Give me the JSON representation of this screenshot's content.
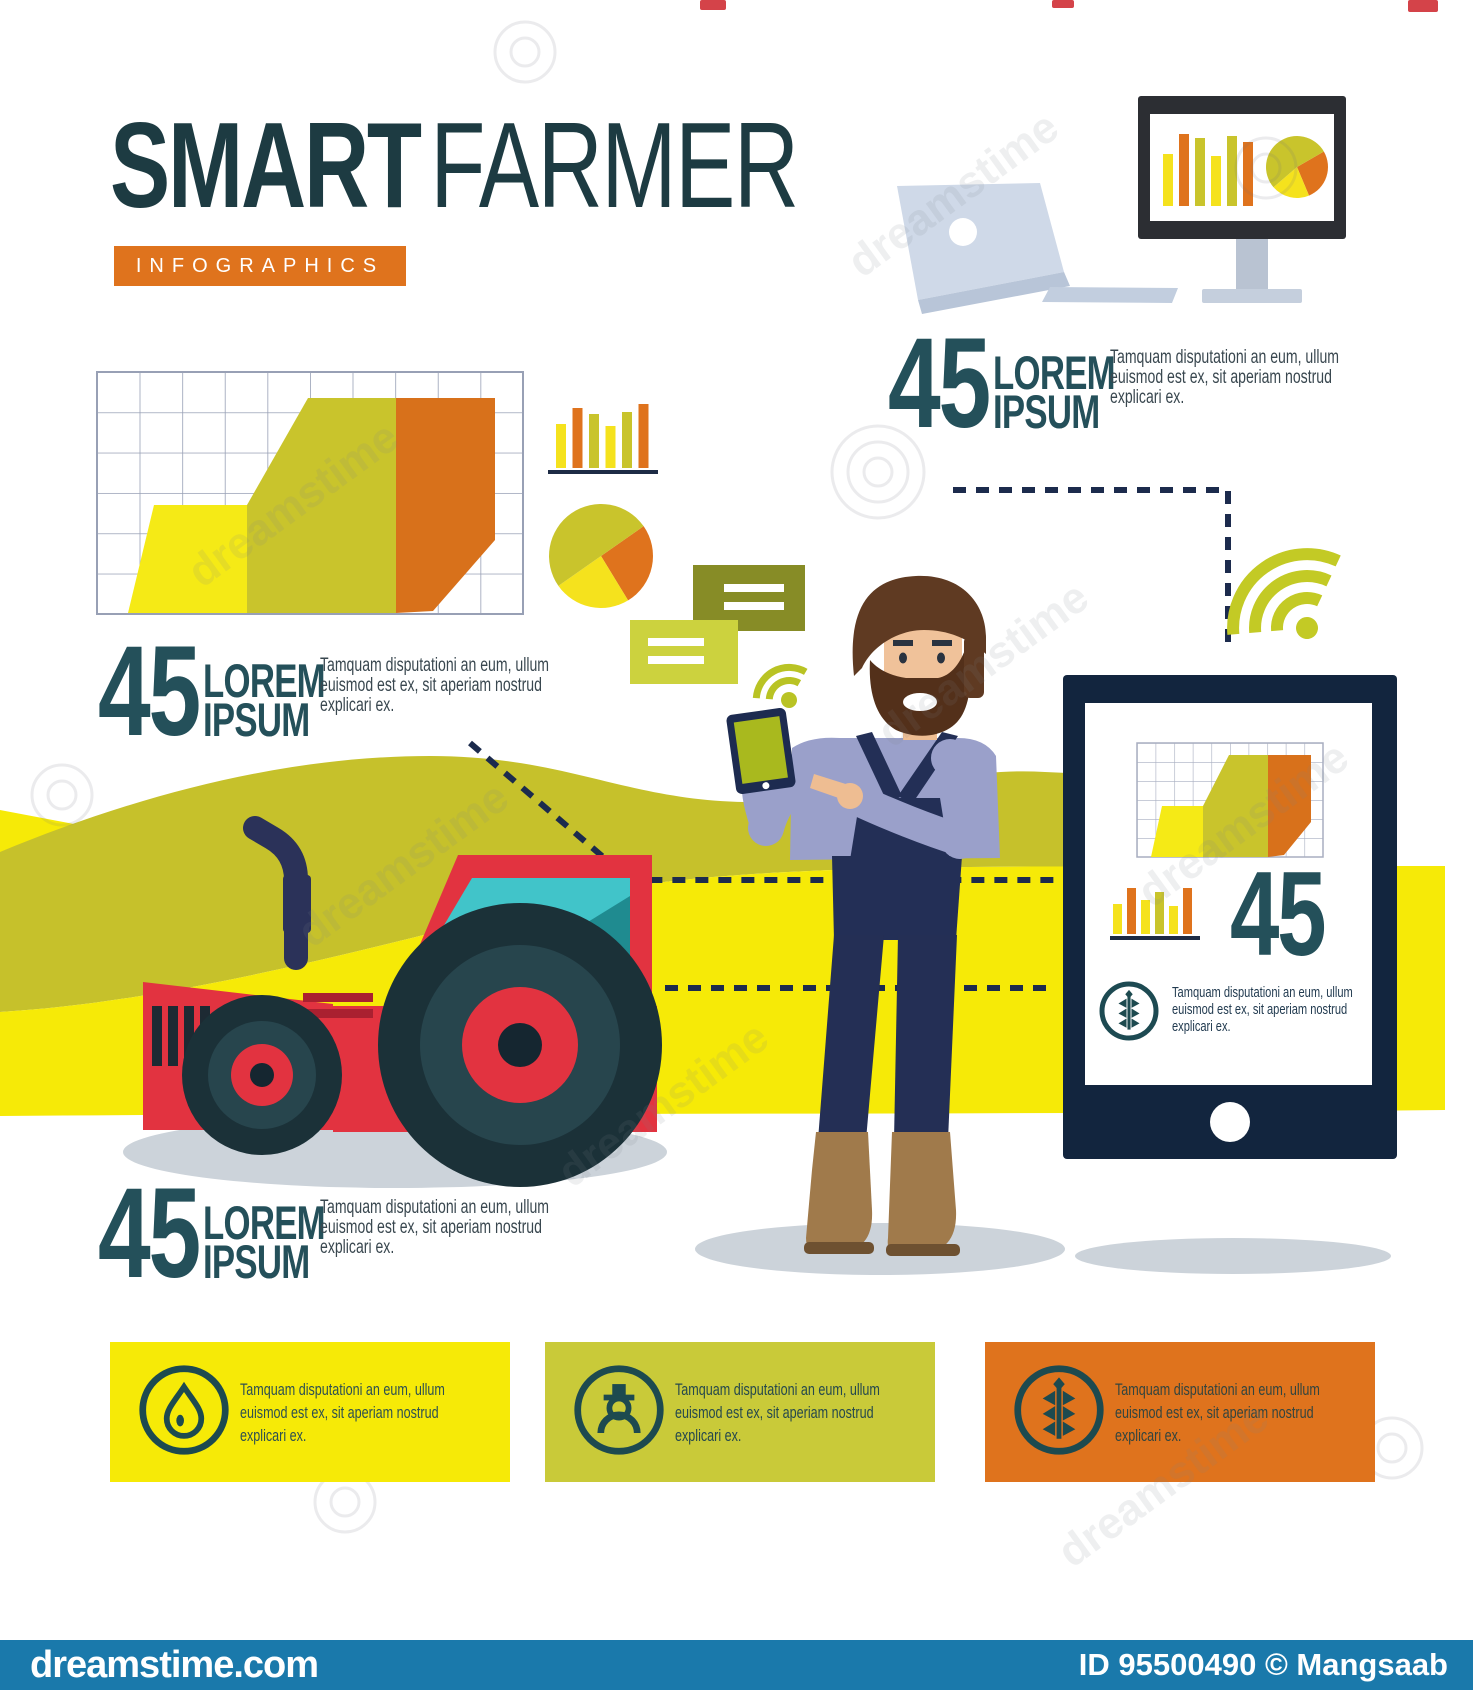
{
  "title": {
    "word_bold": "SMART",
    "word_light": "FARMER",
    "banner": "INFOGRAPHICS"
  },
  "lorem": {
    "l1": "Tamquam disputationi an eum, ullum",
    "l2": "euismod est ex, sit aperiam nostrud",
    "l3": "explicari ex."
  },
  "stat": {
    "value": "45",
    "label1": "LOREM",
    "label2": "IPSUM"
  },
  "tablet": {
    "value": "45",
    "icon": "wheat-icon"
  },
  "boxes": [
    {
      "icon": "water-drop-icon",
      "bg": "#f6ea07"
    },
    {
      "icon": "farmer-icon",
      "bg": "#c9ca39"
    },
    {
      "icon": "wheat-icon",
      "bg": "#df731d"
    }
  ],
  "footer": {
    "brand": "dreamstime.com",
    "credit": "ID 95500490 © Mangsaab"
  },
  "watermark": "dreamstime",
  "colors": {
    "heading_teal": "#24505a",
    "title_teal": "#1d3b42",
    "body_text": "#39474f",
    "orange": "#df731d",
    "bright_yellow": "#f6ea07",
    "olive": "#c9c42c",
    "hill_olive": "#c6c12b",
    "navy": "#12253e",
    "overalls_navy": "#232f56",
    "shirt_lavender": "#9aa0ca",
    "tractor_red": "#e23340",
    "window_teal": "#41c4c9",
    "shadow_gray": "#ccd3da",
    "footer_blue": "#1a79ab"
  },
  "chart_data": [
    {
      "type": "area",
      "title": "grid area chart (decorative, unlabeled)",
      "segments": [
        {
          "label": "yellow",
          "color": "#f5ea16"
        },
        {
          "label": "olive",
          "color": "#c9c42c"
        },
        {
          "label": "orange",
          "color": "#d8711b"
        }
      ],
      "grid": "10x6 squares, no axis labels"
    },
    {
      "type": "bar",
      "id": "side_bars",
      "heights": [
        44,
        60,
        54,
        42,
        56,
        64
      ],
      "colors": [
        "#f5e21d",
        "#df731d",
        "#c9c42c",
        "#f5e21d",
        "#c9c42c",
        "#df731d"
      ]
    },
    {
      "type": "bar",
      "id": "monitor_bars",
      "heights": [
        52,
        72,
        68,
        50,
        70,
        64
      ],
      "colors": [
        "#f5e21d",
        "#df731d",
        "#c9c42c",
        "#f5e21d",
        "#c9c42c",
        "#df731d"
      ]
    },
    {
      "type": "bar",
      "id": "tablet_bars",
      "heights": [
        30,
        46,
        34,
        42,
        28,
        46
      ],
      "colors": [
        "#f5e21d",
        "#df731d",
        "#f5e21d",
        "#c9c42c",
        "#f5e21d",
        "#df731d"
      ]
    },
    {
      "type": "pie",
      "id": "side_pie",
      "start": -35,
      "slices": [
        {
          "color": "#df731d",
          "frac": 0.26
        },
        {
          "color": "#f5e21d",
          "frac": 0.24
        },
        {
          "color": "#c9c42c",
          "frac": 0.5
        }
      ]
    },
    {
      "type": "pie",
      "id": "monitor_pie",
      "start": -30,
      "slices": [
        {
          "color": "#df731d",
          "frac": 0.27
        },
        {
          "color": "#f5e21d",
          "frac": 0.2
        },
        {
          "color": "#c9c42c",
          "frac": 0.53
        }
      ]
    }
  ]
}
